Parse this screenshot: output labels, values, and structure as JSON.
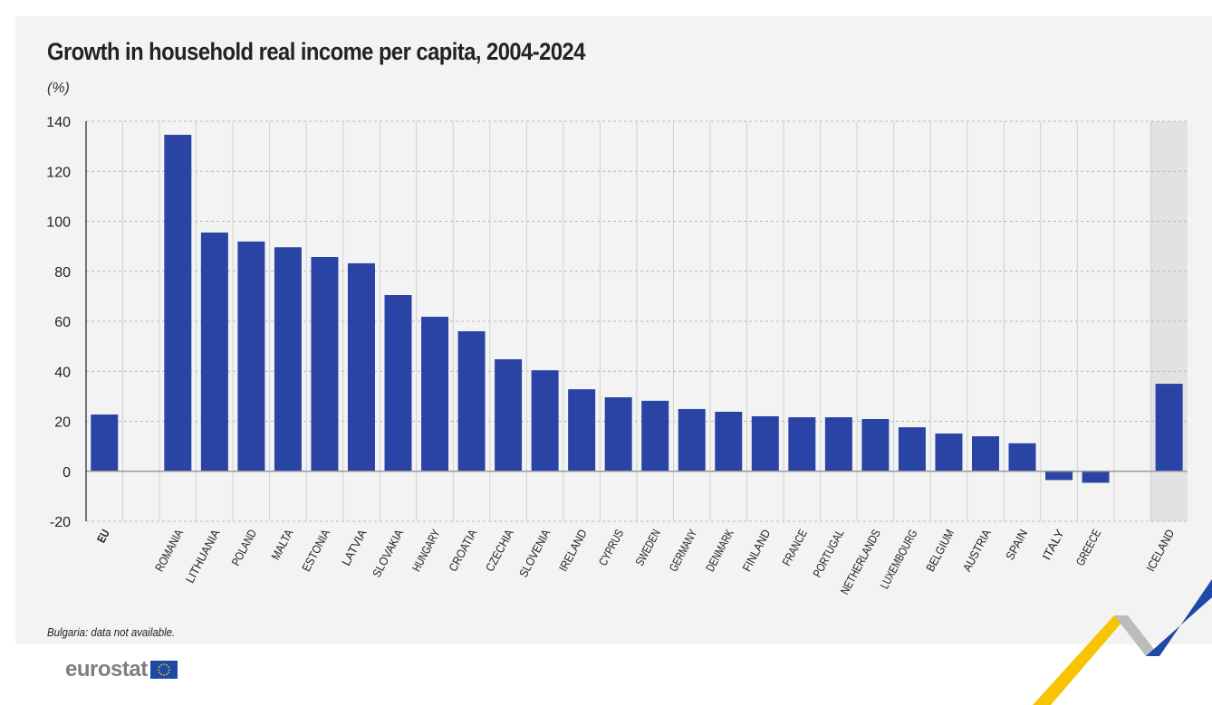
{
  "chart_data": {
    "type": "bar",
    "title": "Growth in household real income per capita, 2004-2024",
    "ylabel": "(%)",
    "xlabel": "",
    "ylim": [
      -20,
      140
    ],
    "yticks": [
      140,
      120,
      100,
      80,
      60,
      40,
      20,
      0,
      -20
    ],
    "grid": true,
    "categories": [
      "EU",
      "",
      "ROMANIA",
      "LITHUANIA",
      "POLAND",
      "MALTA",
      "ESTONIA",
      "LATVIA",
      "SLOVAKIA",
      "HUNGARY",
      "CROATIA",
      "CZECHIA",
      "SLOVENIA",
      "IRELAND",
      "CYPRUS",
      "SWEDEN",
      "GERMANY",
      "DENMARK",
      "FINLAND",
      "FRANCE",
      "PORTUGAL",
      "NETHERLANDS",
      "LUXEMBOURG",
      "BELGIUM",
      "AUSTRIA",
      "SPAIN",
      "ITALY",
      "GREECE",
      "",
      "ICELAND"
    ],
    "values": [
      22.7,
      null,
      134.6,
      95.5,
      91.9,
      89.6,
      85.7,
      83.2,
      70.5,
      61.8,
      56.0,
      44.8,
      40.4,
      32.8,
      29.6,
      28.2,
      24.9,
      23.8,
      22.0,
      21.6,
      21.6,
      20.9,
      17.6,
      15.1,
      14.0,
      11.2,
      -3.5,
      -4.6,
      null,
      35.0
    ],
    "highlighted_category": "ICELAND",
    "bar_color": "#2a44a5",
    "highlight_bg": "#e2e2e2",
    "note": "Bulgaria: data not available."
  },
  "brand": {
    "logo_text": "eurostat",
    "flag_color": "#1f49a6",
    "star_color": "#f4d000"
  }
}
